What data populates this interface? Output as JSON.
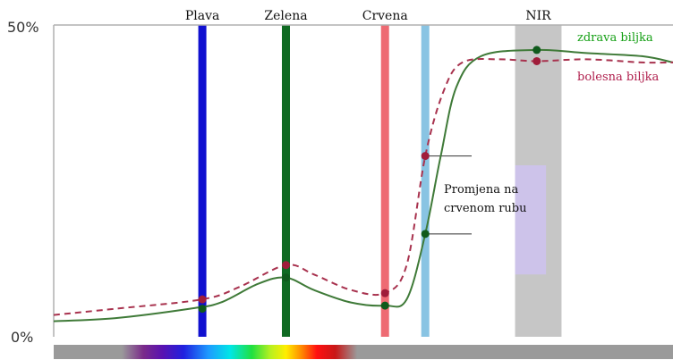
{
  "chart_data": {
    "type": "line",
    "title": "",
    "xlabel": "",
    "ylabel": "",
    "ylim": [
      0,
      50
    ],
    "y_ticks": [
      "50%",
      "0%"
    ],
    "x_domain": [
      0,
      100
    ],
    "grid": false,
    "bands": [
      {
        "label": "Plava",
        "x": 24.0,
        "color": "#1010d0"
      },
      {
        "label": "Zelena",
        "x": 37.5,
        "color": "#0f6a22"
      },
      {
        "label": "Crvena",
        "x": 53.5,
        "color": "#ee6b73"
      },
      {
        "label": "",
        "x": 60.0,
        "color": "#89c4e3"
      }
    ],
    "nir_band": {
      "label": "NIR",
      "x_range": [
        74.5,
        82.0
      ],
      "color": "#c6c6c6"
    },
    "highlight_box": {
      "x_range": [
        74.5,
        79.5
      ],
      "y_range": [
        10.0,
        27.5
      ],
      "color": "#cdc3ea"
    },
    "series": [
      {
        "name": "zdrava biljka",
        "color": "#3f7a38",
        "style": "solid",
        "points": [
          [
            0,
            2.5
          ],
          [
            10,
            3.0
          ],
          [
            22,
            4.5
          ],
          [
            27,
            5.5
          ],
          [
            33,
            8.5
          ],
          [
            37.5,
            9.5
          ],
          [
            42,
            7.5
          ],
          [
            48,
            5.5
          ],
          [
            53.5,
            5.0
          ],
          [
            57,
            6.0
          ],
          [
            60,
            16.5
          ],
          [
            62.5,
            29.0
          ],
          [
            65,
            40.0
          ],
          [
            69,
            45.0
          ],
          [
            78,
            46.0
          ],
          [
            86,
            45.5
          ],
          [
            95,
            45.0
          ],
          [
            100,
            44.0
          ]
        ]
      },
      {
        "name": "bolesna biljka",
        "color": "#a8324e",
        "style": "dashed",
        "points": [
          [
            0,
            3.5
          ],
          [
            10,
            4.5
          ],
          [
            24,
            6.0
          ],
          [
            30,
            8.0
          ],
          [
            37.5,
            11.5
          ],
          [
            42,
            10.0
          ],
          [
            48,
            7.5
          ],
          [
            53.5,
            7.0
          ],
          [
            57,
            11.5
          ],
          [
            60,
            29.0
          ],
          [
            63,
            39.5
          ],
          [
            66,
            44.0
          ],
          [
            72,
            44.5
          ],
          [
            78,
            44.2
          ],
          [
            86,
            44.5
          ],
          [
            95,
            44.0
          ],
          [
            100,
            44.0
          ]
        ]
      }
    ],
    "markers": [
      {
        "series": "bolesna biljka",
        "x": 24.0,
        "y": 6.0
      },
      {
        "series": "bolesna biljka",
        "x": 37.5,
        "y": 11.5
      },
      {
        "series": "bolesna biljka",
        "x": 53.5,
        "y": 7.0
      },
      {
        "series": "bolesna biljka",
        "x": 60.0,
        "y": 29.0
      },
      {
        "series": "bolesna biljka",
        "x": 78.0,
        "y": 44.2
      },
      {
        "series": "zdrava biljka",
        "x": 24.0,
        "y": 4.5
      },
      {
        "series": "zdrava biljka",
        "x": 37.5,
        "y": 9.5
      },
      {
        "series": "zdrava biljka",
        "x": 53.5,
        "y": 5.0
      },
      {
        "series": "zdrava biljka",
        "x": 60.0,
        "y": 16.5
      },
      {
        "series": "zdrava biljka",
        "x": 78.0,
        "y": 46.0
      }
    ],
    "annotation": {
      "lines": [
        "Promjena na",
        "crvenom rubu"
      ],
      "pointer_y": [
        29.0,
        16.5
      ]
    },
    "legend_placement": "top-right, inline labels",
    "legend": [
      {
        "label": "zdrava biljka",
        "color": "#16a016"
      },
      {
        "label": "bolesna biljka",
        "color": "#b0204e"
      }
    ]
  }
}
